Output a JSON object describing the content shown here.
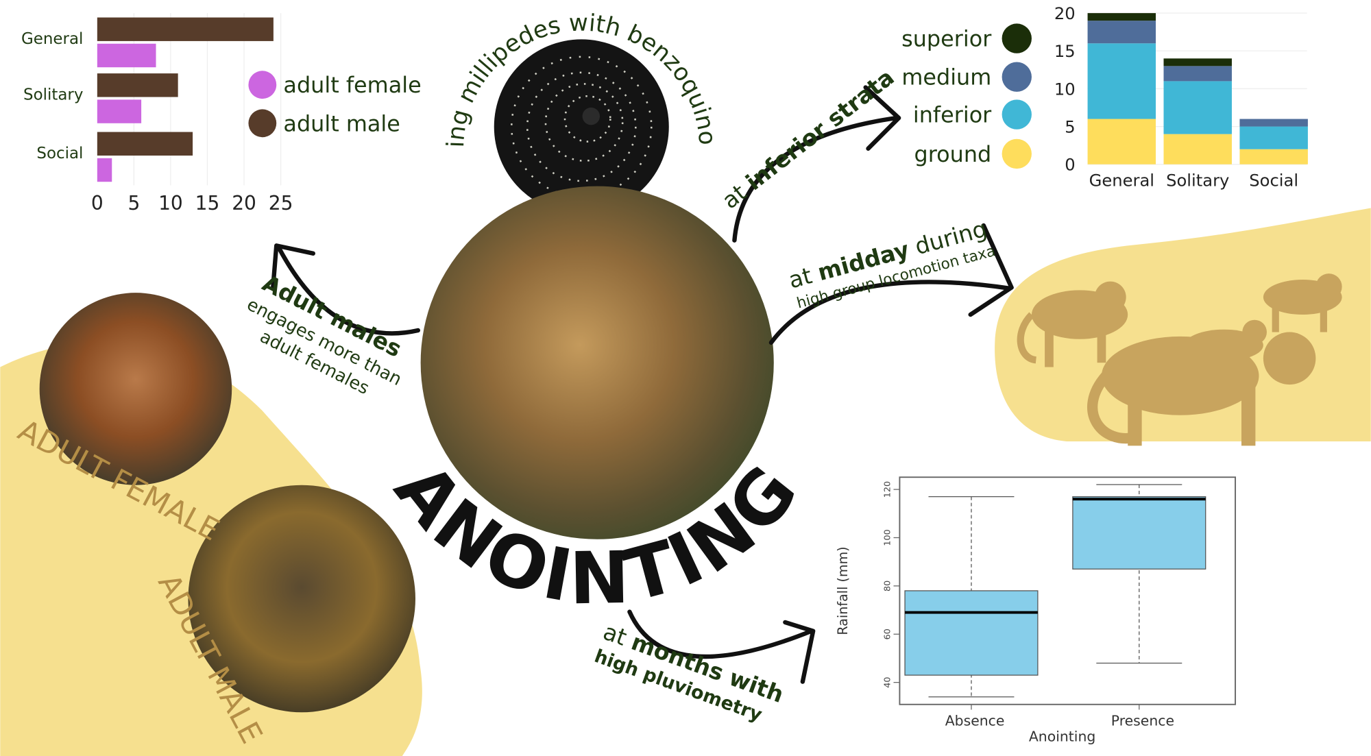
{
  "colors": {
    "text_green": "#1f3a12",
    "yellow_blob": "#f6e08f",
    "silhouette": "#c8a45e",
    "female": "#cc66e0",
    "male": "#573c2a",
    "superior": "#1b2e09",
    "medium": "#4f6d9a",
    "inferior": "#40b7d6",
    "ground": "#fedd5c",
    "box_fill": "#87ceea"
  },
  "center": {
    "title": "ANOINTING",
    "millipede_caption": "using millipedes with benzoquinone"
  },
  "annotations": {
    "strata_prefix": "at ",
    "strata_bold": "inferior strata",
    "midday_prefix": "at ",
    "midday_bold": "midday",
    "midday_suffix": " during",
    "midday_line2": "high group locomotion taxa",
    "males_bold": "Adult males",
    "males_line2": "engages more than",
    "males_line3": "adult females",
    "months_prefix": "at ",
    "months_bold": "months with",
    "months_line2": "high pluviometry"
  },
  "photo_labels": {
    "female": "ADULT FEMALE",
    "male": "ADULT MALE"
  },
  "icons": [
    "millipede-image",
    "capuchin-photo",
    "monkey-silhouettes",
    "arrow-icon"
  ],
  "chart_data": [
    {
      "type": "bar",
      "orientation": "horizontal",
      "categories": [
        "General",
        "Solitary",
        "Social"
      ],
      "series": [
        {
          "name": "adult male",
          "values": [
            24,
            11,
            13
          ]
        },
        {
          "name": "adult female",
          "values": [
            8,
            6,
            2
          ]
        }
      ],
      "xticks": [
        "0",
        "5",
        "10",
        "15",
        "20",
        "25"
      ],
      "xlim": [
        0,
        25
      ],
      "grid": true,
      "legend": [
        "adult female",
        "adult male"
      ],
      "legend_placement": "right"
    },
    {
      "type": "bar",
      "stacked": true,
      "categories": [
        "General",
        "Solitary",
        "Social"
      ],
      "series": [
        {
          "name": "ground",
          "values": [
            6,
            4,
            2
          ]
        },
        {
          "name": "inferior",
          "values": [
            10,
            7,
            3
          ]
        },
        {
          "name": "medium",
          "values": [
            3,
            2,
            1
          ]
        },
        {
          "name": "superior",
          "values": [
            1,
            1,
            0
          ]
        }
      ],
      "yticks": [
        "0",
        "5",
        "10",
        "15",
        "20"
      ],
      "ylim": [
        0,
        20
      ],
      "grid": true,
      "legend": [
        "superior",
        "medium",
        "inferior",
        "ground"
      ],
      "legend_placement": "left"
    },
    {
      "type": "box",
      "categories": [
        "Absence",
        "Presence"
      ],
      "boxes": [
        {
          "min": 34,
          "q1": 43,
          "median": 69,
          "q3": 78,
          "max": 117
        },
        {
          "min": 48,
          "q1": 87,
          "median": 116,
          "q3": 117,
          "max": 122
        }
      ],
      "xlabel": "Anointing",
      "ylabel": "Rainfall (mm)",
      "yticks": [
        "40",
        "60",
        "80",
        "100",
        "120"
      ],
      "ylim": [
        30,
        125
      ]
    }
  ]
}
